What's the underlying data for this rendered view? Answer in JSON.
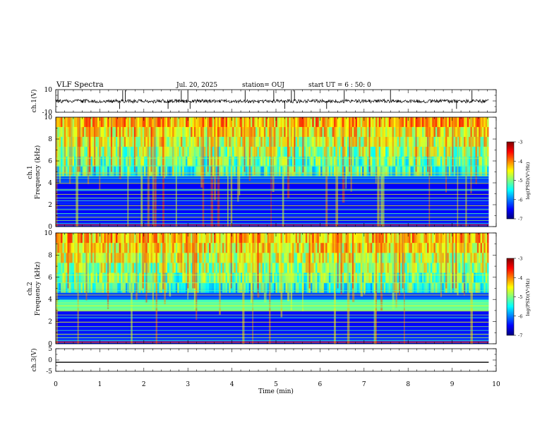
{
  "header": {
    "title": "VLF Spectra",
    "date": "Jul. 20, 2025",
    "station": "station= OUJ",
    "start": "start UT =  6 : 50: 0"
  },
  "chart_data": [
    {
      "type": "line",
      "id": "ch1-waveform",
      "ylabel": "ch.1(V)",
      "ylim": [
        -10,
        10
      ],
      "ytick_labels": [
        "10",
        "-10"
      ],
      "xlim": [
        0,
        10
      ],
      "description_series": "noisy waveform, amplitude about ±2 V with sparse spikes",
      "spike_times_min": [
        0.05,
        1.45,
        1.52,
        1.58,
        2.55,
        2.85,
        3.0,
        3.05,
        4.3,
        4.95,
        5.2,
        5.35,
        5.42,
        6.15,
        6.55,
        7.6,
        9.1,
        9.45
      ]
    },
    {
      "type": "heatmap",
      "id": "ch1-spectrogram",
      "ylabel": "ch.1",
      "ylabel2": "Frequency (kHz)",
      "ylim": [
        0,
        10
      ],
      "ytick_labels": [
        "0",
        "2",
        "4",
        "6",
        "8",
        "10"
      ],
      "xlim": [
        0,
        10
      ],
      "data_extent_min": 9.83,
      "colorbar": {
        "label": "log(PSD)(V²/Hz)",
        "range": [
          -7,
          -3
        ],
        "tick_labels": [
          "-3",
          "-4",
          "-5",
          "-6",
          "-7"
        ]
      },
      "narrowband_lines_khz": [
        0.3,
        0.55,
        0.85,
        1.2,
        1.55,
        1.9,
        2.35,
        2.6,
        2.95,
        3.3,
        3.4,
        3.95,
        4.4,
        4.65,
        4.9,
        5.55,
        6.25
      ],
      "noise_floor_khz": 5.0
    },
    {
      "type": "heatmap",
      "id": "ch2-spectrogram",
      "ylabel": "ch.2",
      "ylabel2": "Frequency (kHz)",
      "ylim": [
        0,
        10
      ],
      "ytick_labels": [
        "0",
        "2",
        "4",
        "6",
        "8",
        "10"
      ],
      "xlim": [
        0,
        10
      ],
      "data_extent_min": 9.83,
      "colorbar": {
        "label": "log(PSD)(V²/Hz)",
        "range": [
          -7,
          -3
        ],
        "tick_labels": [
          "-3",
          "-4",
          "-5",
          "-6",
          "-7"
        ]
      },
      "narrowband_lines_khz": [
        0.3,
        0.55,
        0.85,
        1.2,
        1.55,
        1.95,
        2.35,
        2.6,
        2.95,
        3.25,
        3.35,
        3.45,
        3.55,
        3.7,
        4.4,
        4.8,
        5.5,
        6.2
      ],
      "noise_floor_khz": 5.0
    },
    {
      "type": "line",
      "id": "ch3-waveform",
      "ylabel": "ch.3(V)",
      "ylim": [
        -5,
        5
      ],
      "ytick_labels": [
        "5",
        "0",
        "-5"
      ],
      "xlim": [
        0,
        10
      ],
      "series": [
        {
          "name": "ch.3",
          "x": [
            0,
            9.83
          ],
          "y": [
            -1,
            -1
          ]
        }
      ]
    }
  ],
  "xaxis": {
    "label": "Time (min)",
    "tick_labels": [
      "0",
      "1",
      "2",
      "3",
      "4",
      "5",
      "6",
      "7",
      "8",
      "9",
      "10"
    ],
    "range": [
      0,
      10
    ]
  },
  "colors": {
    "jet": [
      "#00007f",
      "#0000ff",
      "#007fff",
      "#00ffff",
      "#7fff7f",
      "#ffff00",
      "#ff7f00",
      "#ff0000",
      "#7f0000"
    ]
  }
}
